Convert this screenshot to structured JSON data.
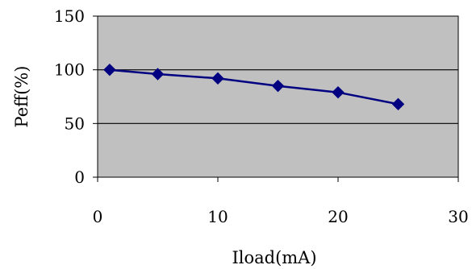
{
  "chart_data": {
    "type": "line",
    "title": "",
    "xlabel": "Iload(mA)",
    "ylabel": "Peff(%)",
    "xlim": [
      0,
      30
    ],
    "ylim": [
      0,
      150
    ],
    "x_ticks": [
      "0",
      "10",
      "20",
      "30"
    ],
    "y_ticks": [
      "0",
      "50",
      "100",
      "150"
    ],
    "grid": "horizontal",
    "legend": "none",
    "plot_background": "#c0c0c0",
    "series_color": "#000080",
    "series": [
      {
        "x": [
          1,
          5,
          10,
          15,
          20,
          25
        ],
        "y": [
          100,
          96,
          92,
          85,
          79,
          68
        ]
      }
    ]
  }
}
